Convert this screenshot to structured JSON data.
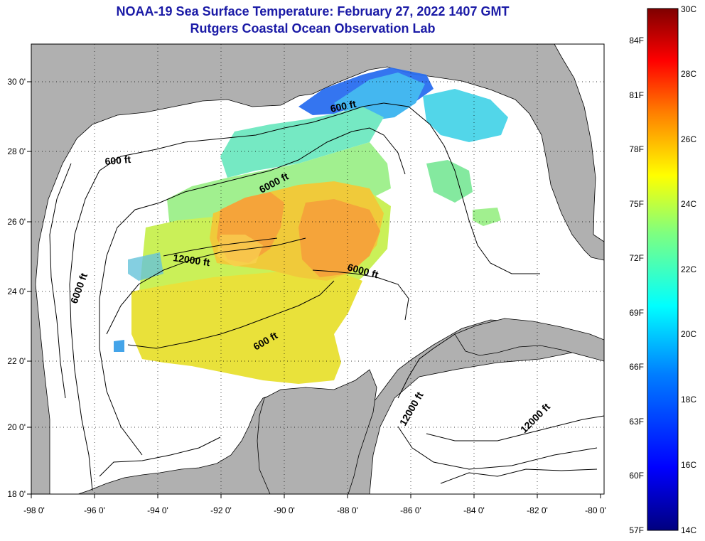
{
  "header": {
    "title": "NOAA-19 Sea Surface Temperature:  February 27, 2022 1407 GMT",
    "subtitle": "Rutgers Coastal Ocean Observation Lab"
  },
  "map": {
    "lon_labels": [
      "-98 0'",
      "-96 0'",
      "-94 0'",
      "-92 0'",
      "-90 0'",
      "-88 0'",
      "-86 0'",
      "-84 0'",
      "-82 0'",
      "-80 0'"
    ],
    "lat_labels": [
      "30 0'",
      "28 0'",
      "26 0'",
      "24 0'",
      "22 0'",
      "20 0'",
      "18 0'"
    ],
    "contour_labels": [
      "600 ft",
      "600 ft",
      "6000 ft",
      "12000 ft",
      "6000 ft",
      "6000 ft",
      "600 ft",
      "12000 ft",
      "12000 ft"
    ],
    "colors": {
      "land": "#b0b0b0",
      "ocean": "#ffffff",
      "grid": "#000000"
    }
  },
  "colorbar": {
    "celsius_labels": [
      "30C",
      "28C",
      "26C",
      "24C",
      "22C",
      "20C",
      "18C",
      "16C",
      "14C"
    ],
    "fahrenheit_labels": [
      "84F",
      "81F",
      "78F",
      "75F",
      "72F",
      "69F",
      "66F",
      "63F",
      "60F",
      "57F"
    ],
    "stops": [
      "#00007f",
      "#0000ff",
      "#007fff",
      "#00ffff",
      "#7fff7f",
      "#ffff00",
      "#ff7f00",
      "#ff0000",
      "#7f0000"
    ]
  }
}
